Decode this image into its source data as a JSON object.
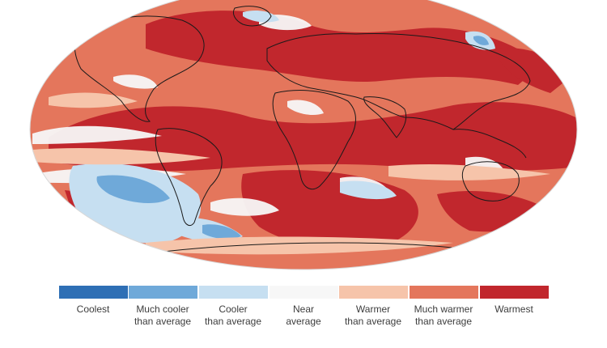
{
  "legend": {
    "categories": [
      {
        "label": "Coolest",
        "color": "#2e6fb5"
      },
      {
        "label": "Much cooler\nthan average",
        "color": "#6fa9d9"
      },
      {
        "label": "Cooler\nthan average",
        "color": "#c6dff1"
      },
      {
        "label": "Near\naverage",
        "color": "#f7f7f7"
      },
      {
        "label": "Warmer\nthan average",
        "color": "#f6c4aa"
      },
      {
        "label": "Much warmer\nthan average",
        "color": "#e4765c"
      },
      {
        "label": "Warmest",
        "color": "#c1272d"
      }
    ]
  }
}
